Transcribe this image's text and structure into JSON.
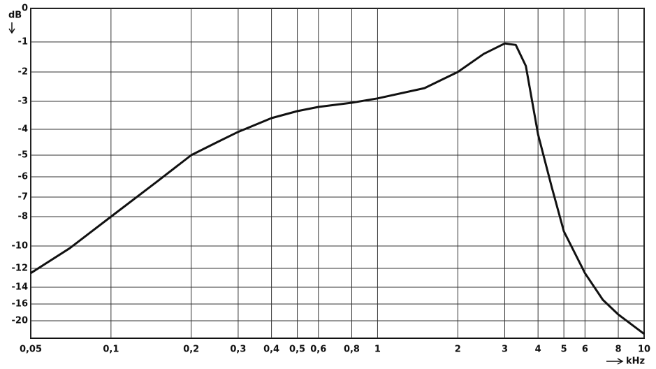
{
  "chart_data": {
    "type": "line",
    "y_label": "dB",
    "x_label": "kHz",
    "x": [
      0.05,
      0.07,
      0.1,
      0.15,
      0.2,
      0.25,
      0.3,
      0.4,
      0.5,
      0.6,
      0.8,
      1,
      1.5,
      2,
      2.5,
      3,
      3.3,
      3.6,
      4,
      4.5,
      5,
      6,
      7,
      8,
      10
    ],
    "series": [
      {
        "color": "#111111",
        "values": [
          -12.5,
          -10.2,
          -8,
          -6.2,
          -5,
          -4.5,
          -4.1,
          -3.6,
          -3.35,
          -3.2,
          -3.05,
          -2.9,
          -2.55,
          -2.0,
          -1.4,
          -1.05,
          -1.1,
          -1.8,
          -4.2,
          -6.5,
          -9,
          -12.5,
          -15.5,
          -18.5,
          -23
        ]
      }
    ],
    "xscale": "log",
    "xlim": [
      0.05,
      10
    ],
    "xticks": [
      {
        "value": 0.05,
        "label": "0,05"
      },
      {
        "value": 0.1,
        "label": "0,1"
      },
      {
        "value": 0.2,
        "label": "0,2"
      },
      {
        "value": 0.3,
        "label": "0,3"
      },
      {
        "value": 0.4,
        "label": "0,4"
      },
      {
        "value": 0.5,
        "label": "0,5"
      },
      {
        "value": 0.6,
        "label": "0,6"
      },
      {
        "value": 0.8,
        "label": "0,8"
      },
      1,
      2,
      3,
      4,
      5,
      6,
      8,
      10
    ],
    "ylim": [
      0,
      -24
    ],
    "yticks": [
      0,
      -1,
      -2,
      -3,
      -4,
      -5,
      -6,
      -7,
      -8,
      -10,
      -12,
      -14,
      -16,
      -20
    ],
    "grid": true
  }
}
